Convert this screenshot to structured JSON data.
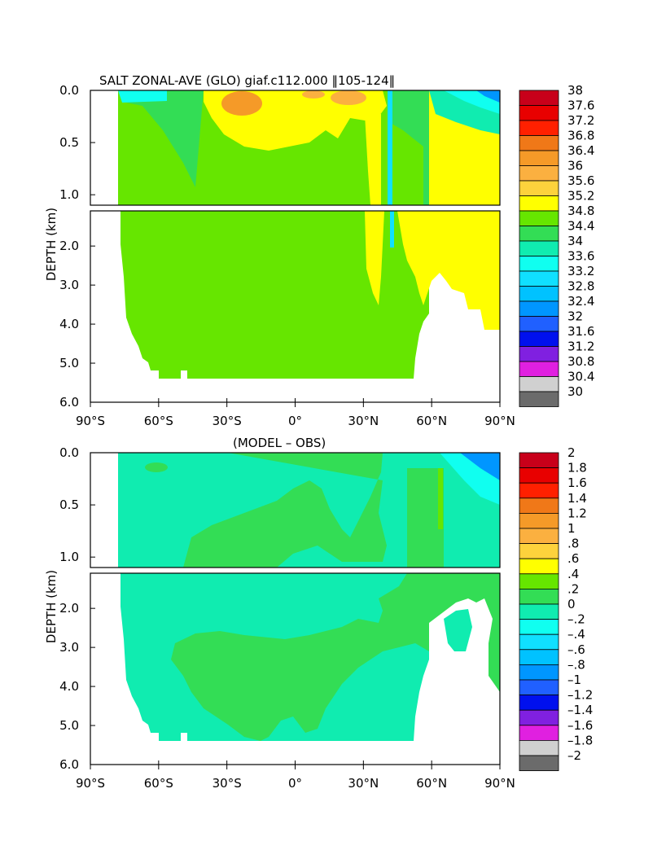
{
  "chart_data": [
    {
      "type": "heatmap",
      "title": "SALT ZONAL-AVE (GLO) giaf.c112.000 ‖105-124‖",
      "xlabel": "",
      "ylabel": "DEPTH (km)",
      "x_ticks": [
        -90,
        -60,
        -30,
        0,
        30,
        60,
        90
      ],
      "x_tick_labels": [
        "90°S",
        "60°S",
        "30°S",
        "0°",
        "30°N",
        "60°N",
        "90°N"
      ],
      "upper_y_ticks": [
        0.0,
        0.5,
        1.0
      ],
      "upper_y_tick_labels": [
        "0.0",
        "0.5",
        "1.0"
      ],
      "lower_y_ticks": [
        2.0,
        3.0,
        4.0,
        5.0,
        6.0
      ],
      "lower_y_tick_labels": [
        "2.0",
        "3.0",
        "4.0",
        "5.0",
        "6.0"
      ],
      "xlim": [
        -90,
        90
      ],
      "ylim_upper_km": [
        0,
        1.1
      ],
      "ylim_lower_km": [
        1.1,
        6.0
      ],
      "colorbar_levels": [
        "38",
        "37.6",
        "37.2",
        "36.8",
        "36.4",
        "36",
        "35.6",
        "35.2",
        "34.8",
        "34.4",
        "34",
        "33.6",
        "33.2",
        "32.8",
        "32.4",
        "32",
        "31.6",
        "31.2",
        "30.8",
        "30.4",
        "30"
      ],
      "colorbar_colors": [
        "#c8001a",
        "#e80000",
        "#ff2000",
        "#f07818",
        "#f59a28",
        "#fbb040",
        "#fdd23c",
        "#ffff00",
        "#66e600",
        "#33dd55",
        "#10ecb0",
        "#10fff0",
        "#10e0ff",
        "#00c2ff",
        "#0096ff",
        "#2060ff",
        "#0010ee",
        "#8020e0",
        "#e020e0",
        "#d0d0d0",
        "#6b6b6b"
      ],
      "field_description": "background ~34.8 (green); surface subtropics 35.2-36 (yellow/orange); Atlantic tongue ~35 to 4 km near 30-55N; Arctic surface fresh (<32)"
    },
    {
      "type": "heatmap",
      "title": "(MODEL – OBS)",
      "xlabel": "",
      "ylabel": "DEPTH (km)",
      "x_ticks": [
        -90,
        -60,
        -30,
        0,
        30,
        60,
        90
      ],
      "x_tick_labels": [
        "90°S",
        "60°S",
        "30°S",
        "0°",
        "30°N",
        "60°N",
        "90°N"
      ],
      "upper_y_ticks": [
        0.0,
        0.5,
        1.0
      ],
      "upper_y_tick_labels": [
        "0.0",
        "0.5",
        "1.0"
      ],
      "lower_y_ticks": [
        2.0,
        3.0,
        4.0,
        5.0,
        6.0
      ],
      "lower_y_tick_labels": [
        "2.0",
        "3.0",
        "4.0",
        "5.0",
        "6.0"
      ],
      "xlim": [
        -90,
        90
      ],
      "ylim_upper_km": [
        0,
        1.1
      ],
      "ylim_lower_km": [
        1.1,
        6.0
      ],
      "colorbar_levels": [
        "2",
        "1.8",
        "1.6",
        "1.4",
        "1.2",
        "1",
        ".8",
        ".6",
        ".4",
        ".2",
        "0",
        "–.2",
        "–.4",
        "–.6",
        "–.8",
        "–1",
        "–1.2",
        "–1.4",
        "–1.6",
        "–1.8",
        "–2"
      ],
      "colorbar_colors": [
        "#c8001a",
        "#e80000",
        "#ff2000",
        "#f07818",
        "#f59a28",
        "#fbb040",
        "#fdd23c",
        "#ffff00",
        "#66e600",
        "#33dd55",
        "#10ecb0",
        "#10fff0",
        "#10e0ff",
        "#00c2ff",
        "#0096ff",
        "#2060ff",
        "#0010ee",
        "#8020e0",
        "#e020e0",
        "#d0d0d0",
        "#6b6b6b"
      ],
      "field_description": "mostly 0 to -0.2 (cyan) with 0 to 0.2 (green) anomalies in mid depths; strong negative near Arctic surface"
    }
  ]
}
